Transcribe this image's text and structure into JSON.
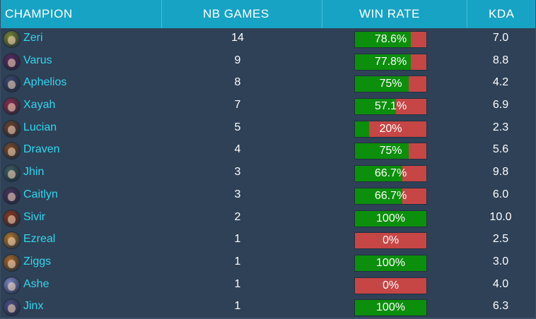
{
  "header": {
    "champion": "CHAMPION",
    "games": "NB GAMES",
    "winrate": "WIN RATE",
    "kda": "KDA"
  },
  "colors": {
    "header_bg": "#17a3c4",
    "row_bg": "#2e4156",
    "name_text": "#33d6f0",
    "win_fill": "#0c8f0c",
    "loss_fill": "#c64646"
  },
  "rows": [
    {
      "name": "Zeri",
      "games": "14",
      "winrate_label": "78.6%",
      "winrate": 0.786,
      "kda": "7.0",
      "avatar_color": "#7a8a35",
      "icon": "zeri-portrait-icon"
    },
    {
      "name": "Varus",
      "games": "9",
      "winrate_label": "77.8%",
      "winrate": 0.778,
      "kda": "8.8",
      "avatar_color": "#5a2a5e",
      "icon": "varus-portrait-icon"
    },
    {
      "name": "Aphelios",
      "games": "8",
      "winrate_label": "75%",
      "winrate": 0.75,
      "kda": "4.2",
      "avatar_color": "#3d4b70",
      "icon": "aphelios-portrait-icon"
    },
    {
      "name": "Xayah",
      "games": "7",
      "winrate_label": "57.1%",
      "winrate": 0.571,
      "kda": "6.9",
      "avatar_color": "#8a2f4f",
      "icon": "xayah-portrait-icon"
    },
    {
      "name": "Lucian",
      "games": "5",
      "winrate_label": "20%",
      "winrate": 0.2,
      "kda": "2.3",
      "avatar_color": "#6b4330",
      "icon": "lucian-portrait-icon"
    },
    {
      "name": "Draven",
      "games": "4",
      "winrate_label": "75%",
      "winrate": 0.75,
      "kda": "5.6",
      "avatar_color": "#7a4a2c",
      "icon": "draven-portrait-icon"
    },
    {
      "name": "Jhin",
      "games": "3",
      "winrate_label": "66.7%",
      "winrate": 0.667,
      "kda": "9.8",
      "avatar_color": "#3e5f63",
      "icon": "jhin-portrait-icon"
    },
    {
      "name": "Caitlyn",
      "games": "3",
      "winrate_label": "66.7%",
      "winrate": 0.667,
      "kda": "6.0",
      "avatar_color": "#4a3560",
      "icon": "caitlyn-portrait-icon"
    },
    {
      "name": "Sivir",
      "games": "2",
      "winrate_label": "100%",
      "winrate": 1.0,
      "kda": "10.0",
      "avatar_color": "#8a3a22",
      "icon": "sivir-portrait-icon"
    },
    {
      "name": "Ezreal",
      "games": "1",
      "winrate_label": "0%",
      "winrate": 0.0,
      "kda": "2.5",
      "avatar_color": "#b07a2e",
      "icon": "ezreal-portrait-icon"
    },
    {
      "name": "Ziggs",
      "games": "1",
      "winrate_label": "100%",
      "winrate": 1.0,
      "kda": "3.0",
      "avatar_color": "#a86a2a",
      "icon": "ziggs-portrait-icon"
    },
    {
      "name": "Ashe",
      "games": "1",
      "winrate_label": "0%",
      "winrate": 0.0,
      "kda": "4.0",
      "avatar_color": "#7d8ac9",
      "icon": "ashe-portrait-icon"
    },
    {
      "name": "Jinx",
      "games": "1",
      "winrate_label": "100%",
      "winrate": 1.0,
      "kda": "6.3",
      "avatar_color": "#4e4f86",
      "icon": "jinx-portrait-icon"
    }
  ]
}
